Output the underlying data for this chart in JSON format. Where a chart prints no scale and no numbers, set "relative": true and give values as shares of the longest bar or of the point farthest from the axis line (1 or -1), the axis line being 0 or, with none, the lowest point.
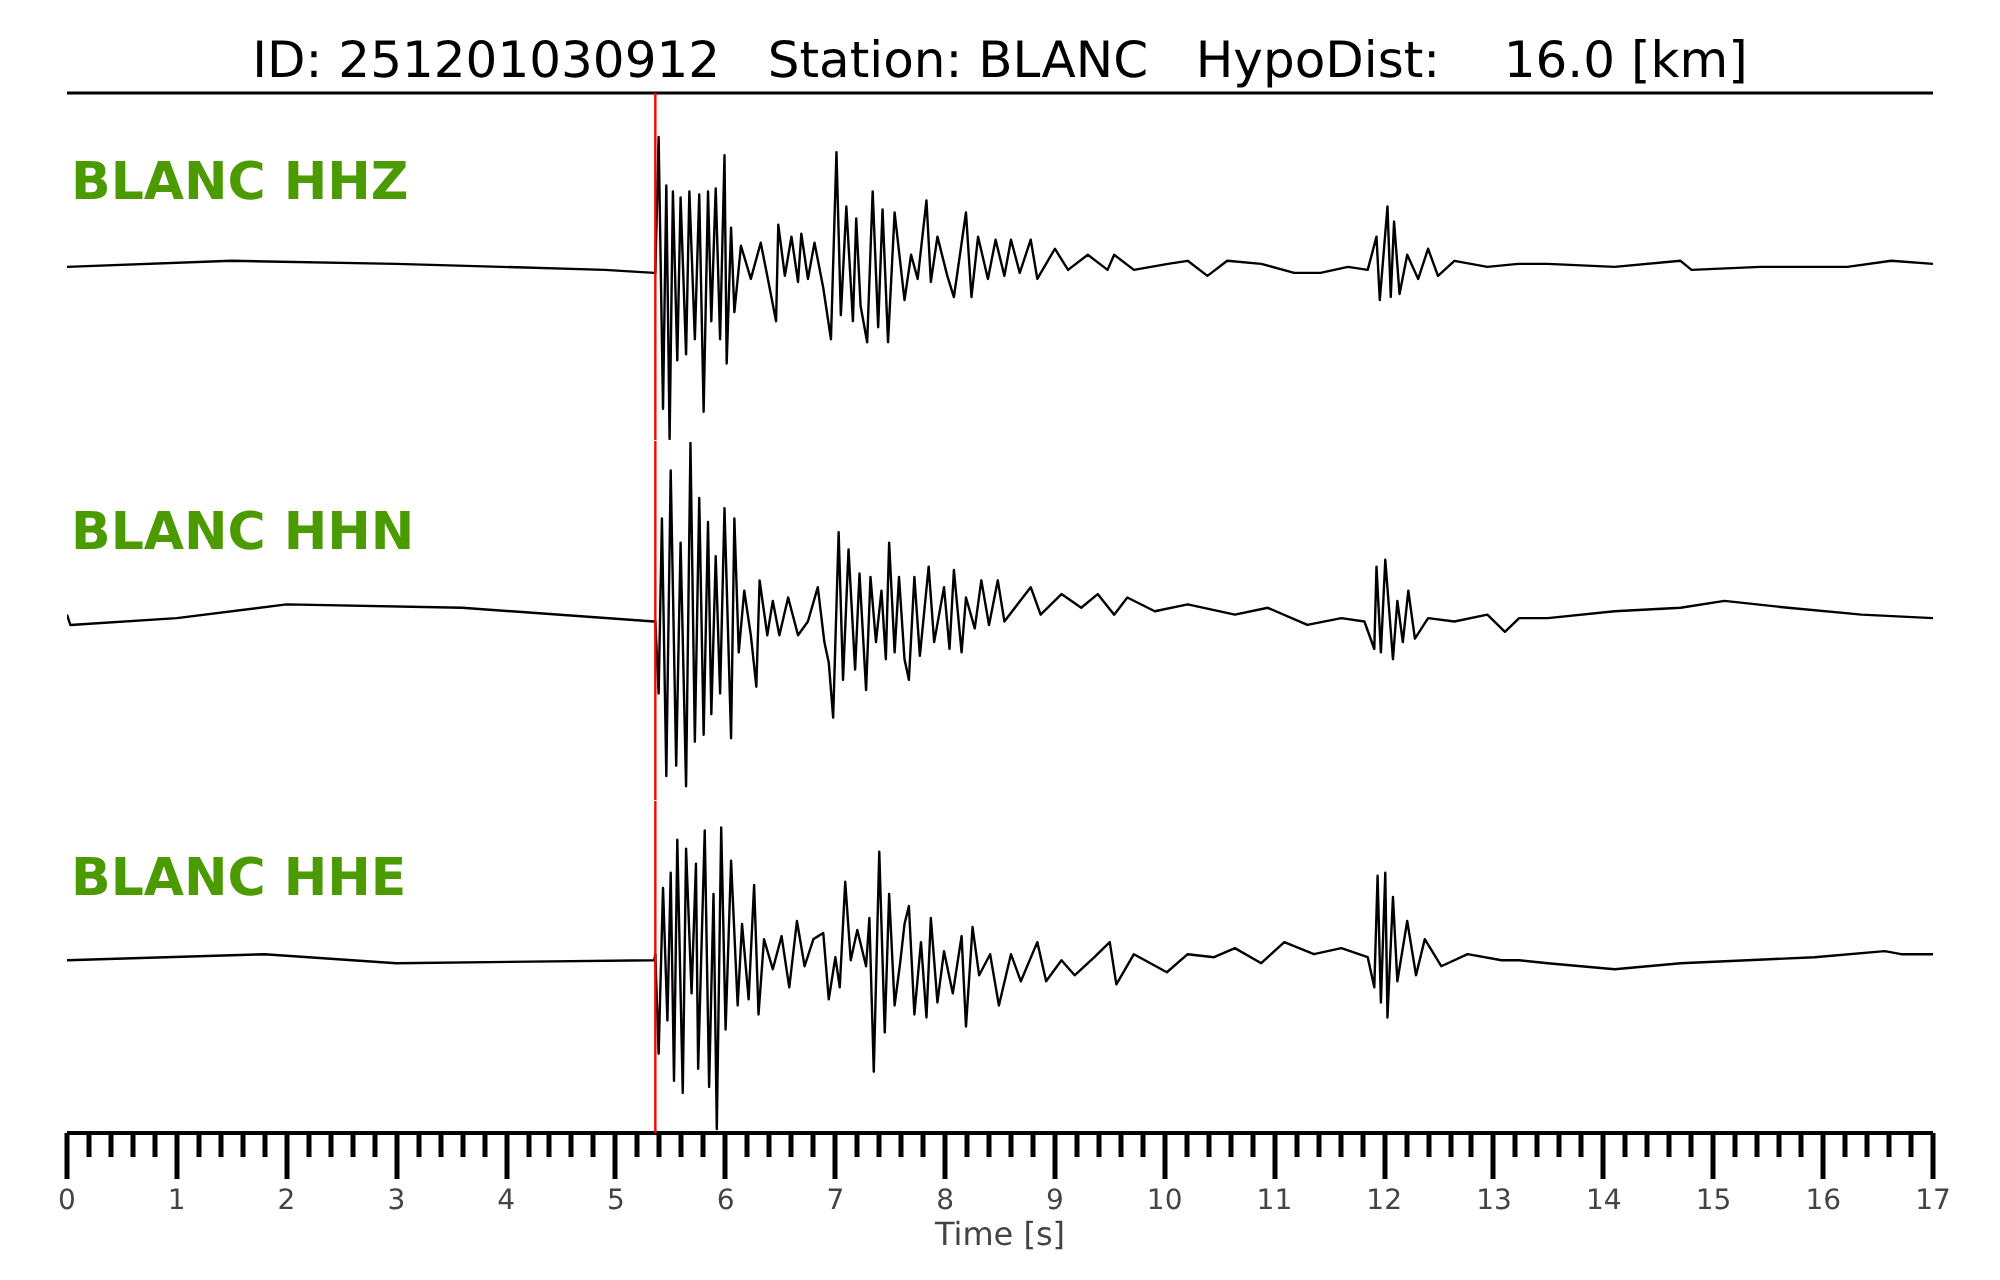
{
  "chart_data": [
    {
      "type": "line",
      "title": "ID: 251201030912   Station: BLANC   HypoDist:    16.0 [km]",
      "relative": true,
      "xlim": [
        0,
        17
      ],
      "tick_labels": false,
      "ref_lines": [
        {
          "axis": "x",
          "value": 5.36,
          "color": "#ff0000"
        }
      ],
      "series": [
        {
          "name": "BLANC HHZ",
          "color": "#000000",
          "x": [
            0,
            1.5,
            3,
            4.9,
            5.35,
            5.36,
            5.39,
            5.43,
            5.46,
            5.49,
            5.52,
            5.56,
            5.59,
            5.64,
            5.67,
            5.72,
            5.76,
            5.8,
            5.84,
            5.87,
            5.91,
            5.95,
            5.99,
            6.01,
            6.05,
            6.08,
            6.14,
            6.23,
            6.32,
            6.38,
            6.46,
            6.48,
            6.54,
            6.6,
            6.66,
            6.69,
            6.75,
            6.81,
            6.89,
            6.96,
            7.01,
            7.05,
            7.1,
            7.16,
            7.19,
            7.23,
            7.29,
            7.34,
            7.39,
            7.43,
            7.48,
            7.54,
            7.63,
            7.69,
            7.75,
            7.83,
            7.87,
            7.93,
            8.02,
            8.08,
            8.19,
            8.24,
            8.3,
            8.39,
            8.46,
            8.54,
            8.6,
            8.68,
            8.78,
            8.84,
            9.0,
            9.12,
            9.3,
            9.48,
            9.54,
            9.72,
            10.03,
            10.21,
            10.39,
            10.57,
            10.88,
            11.18,
            11.42,
            11.67,
            11.85,
            11.93,
            11.96,
            12.03,
            12.06,
            12.09,
            12.14,
            12.21,
            12.31,
            12.4,
            12.49,
            12.64,
            12.94,
            13.22,
            13.49,
            14.1,
            14.7,
            14.8,
            15.43,
            16.22,
            16.62,
            17.0
          ],
          "values": [
            0.57,
            0.59,
            0.58,
            0.56,
            0.55,
            0.55,
            1.0,
            0.1,
            0.84,
            0.0,
            0.82,
            0.26,
            0.8,
            0.28,
            0.82,
            0.33,
            0.81,
            0.09,
            0.82,
            0.39,
            0.83,
            0.33,
            0.94,
            0.25,
            0.7,
            0.42,
            0.64,
            0.53,
            0.65,
            0.54,
            0.39,
            0.71,
            0.54,
            0.67,
            0.52,
            0.68,
            0.53,
            0.65,
            0.5,
            0.33,
            0.95,
            0.41,
            0.77,
            0.39,
            0.73,
            0.44,
            0.32,
            0.82,
            0.37,
            0.76,
            0.32,
            0.75,
            0.46,
            0.61,
            0.53,
            0.79,
            0.52,
            0.67,
            0.54,
            0.47,
            0.75,
            0.47,
            0.67,
            0.53,
            0.66,
            0.54,
            0.66,
            0.55,
            0.66,
            0.53,
            0.63,
            0.56,
            0.61,
            0.56,
            0.61,
            0.56,
            0.58,
            0.59,
            0.54,
            0.59,
            0.58,
            0.55,
            0.55,
            0.57,
            0.56,
            0.67,
            0.46,
            0.77,
            0.47,
            0.72,
            0.48,
            0.61,
            0.53,
            0.63,
            0.54,
            0.59,
            0.57,
            0.58,
            0.58,
            0.57,
            0.59,
            0.56,
            0.57,
            0.57,
            0.59,
            0.58
          ]
        }
      ]
    },
    {
      "type": "line",
      "relative": true,
      "xlim": [
        0,
        17
      ],
      "tick_labels": false,
      "ref_lines": [
        {
          "axis": "x",
          "value": 5.36,
          "color": "#ff0000"
        }
      ],
      "series": [
        {
          "name": "BLANC HHN",
          "color": "#000000",
          "x": [
            0,
            0.03,
            1.0,
            2.0,
            3.6,
            5.35,
            5.36,
            5.39,
            5.42,
            5.46,
            5.5,
            5.55,
            5.59,
            5.64,
            5.68,
            5.72,
            5.76,
            5.8,
            5.84,
            5.87,
            5.91,
            5.95,
            5.99,
            6.05,
            6.08,
            6.12,
            6.17,
            6.23,
            6.28,
            6.31,
            6.38,
            6.43,
            6.49,
            6.57,
            6.66,
            6.75,
            6.84,
            6.9,
            6.94,
            6.98,
            7.03,
            7.07,
            7.12,
            7.18,
            7.22,
            7.28,
            7.32,
            7.37,
            7.42,
            7.46,
            7.49,
            7.54,
            7.58,
            7.63,
            7.67,
            7.72,
            7.77,
            7.85,
            7.9,
            7.99,
            8.04,
            8.08,
            8.15,
            8.19,
            8.27,
            8.33,
            8.4,
            8.48,
            8.54,
            8.66,
            8.78,
            8.87,
            9.06,
            9.24,
            9.39,
            9.54,
            9.66,
            9.91,
            10.21,
            10.64,
            10.94,
            11.3,
            11.61,
            11.82,
            11.91,
            11.93,
            11.97,
            12.01,
            12.08,
            12.12,
            12.17,
            12.22,
            12.28,
            12.4,
            12.64,
            12.94,
            13.1,
            13.23,
            13.49,
            14.1,
            14.7,
            15.1,
            15.68,
            16.35,
            17.0
          ],
          "values": [
            0.5,
            0.47,
            0.49,
            0.53,
            0.52,
            0.48,
            0.48,
            0.27,
            0.78,
            0.03,
            0.92,
            0.06,
            0.71,
            0.0,
            1.0,
            0.13,
            0.84,
            0.15,
            0.77,
            0.21,
            0.67,
            0.27,
            0.81,
            0.14,
            0.78,
            0.39,
            0.57,
            0.44,
            0.29,
            0.6,
            0.44,
            0.54,
            0.44,
            0.55,
            0.44,
            0.48,
            0.58,
            0.42,
            0.36,
            0.2,
            0.74,
            0.31,
            0.69,
            0.34,
            0.62,
            0.28,
            0.61,
            0.42,
            0.57,
            0.37,
            0.71,
            0.39,
            0.61,
            0.37,
            0.31,
            0.61,
            0.38,
            0.64,
            0.42,
            0.58,
            0.4,
            0.63,
            0.39,
            0.55,
            0.46,
            0.6,
            0.47,
            0.6,
            0.48,
            0.53,
            0.58,
            0.5,
            0.56,
            0.52,
            0.56,
            0.5,
            0.55,
            0.51,
            0.53,
            0.5,
            0.52,
            0.47,
            0.49,
            0.48,
            0.4,
            0.64,
            0.39,
            0.66,
            0.37,
            0.54,
            0.42,
            0.57,
            0.43,
            0.49,
            0.48,
            0.5,
            0.45,
            0.49,
            0.49,
            0.51,
            0.52,
            0.54,
            0.52,
            0.5,
            0.49
          ]
        }
      ]
    },
    {
      "type": "line",
      "relative": true,
      "xlabel": "Time [s]",
      "xlim": [
        0,
        17
      ],
      "tick_labels": "x",
      "xticks": [
        0,
        {
          "value": 0.2,
          "label": null
        },
        {
          "value": 0.4,
          "label": null
        },
        {
          "value": 0.6,
          "label": null
        },
        {
          "value": 0.8,
          "label": null
        },
        1,
        {
          "value": 1.2,
          "label": null
        },
        {
          "value": 1.4,
          "label": null
        },
        {
          "value": 1.6,
          "label": null
        },
        {
          "value": 1.8,
          "label": null
        },
        2,
        {
          "value": 2.2,
          "label": null
        },
        {
          "value": 2.4,
          "label": null
        },
        {
          "value": 2.6,
          "label": null
        },
        {
          "value": 2.8,
          "label": null
        },
        3,
        {
          "value": 3.2,
          "label": null
        },
        {
          "value": 3.4,
          "label": null
        },
        {
          "value": 3.6,
          "label": null
        },
        {
          "value": 3.8,
          "label": null
        },
        4,
        {
          "value": 4.2,
          "label": null
        },
        {
          "value": 4.4,
          "label": null
        },
        {
          "value": 4.6,
          "label": null
        },
        {
          "value": 4.8,
          "label": null
        },
        5,
        {
          "value": 5.2,
          "label": null
        },
        {
          "value": 5.4,
          "label": null
        },
        {
          "value": 5.6,
          "label": null
        },
        {
          "value": 5.8,
          "label": null
        },
        6,
        {
          "value": 6.2,
          "label": null
        },
        {
          "value": 6.4,
          "label": null
        },
        {
          "value": 6.6,
          "label": null
        },
        {
          "value": 6.8,
          "label": null
        },
        7,
        {
          "value": 7.2,
          "label": null
        },
        {
          "value": 7.4,
          "label": null
        },
        {
          "value": 7.6,
          "label": null
        },
        {
          "value": 7.8,
          "label": null
        },
        8,
        {
          "value": 8.2,
          "label": null
        },
        {
          "value": 8.4,
          "label": null
        },
        {
          "value": 8.6,
          "label": null
        },
        {
          "value": 8.8,
          "label": null
        },
        9,
        {
          "value": 9.2,
          "label": null
        },
        {
          "value": 9.4,
          "label": null
        },
        {
          "value": 9.6,
          "label": null
        },
        {
          "value": 9.8,
          "label": null
        },
        10,
        {
          "value": 10.2,
          "label": null
        },
        {
          "value": 10.4,
          "label": null
        },
        {
          "value": 10.6,
          "label": null
        },
        {
          "value": 10.8,
          "label": null
        },
        11,
        {
          "value": 11.2,
          "label": null
        },
        {
          "value": 11.4,
          "label": null
        },
        {
          "value": 11.6,
          "label": null
        },
        {
          "value": 11.8,
          "label": null
        },
        12,
        {
          "value": 12.2,
          "label": null
        },
        {
          "value": 12.4,
          "label": null
        },
        {
          "value": 12.6,
          "label": null
        },
        {
          "value": 12.8,
          "label": null
        },
        13,
        {
          "value": 13.2,
          "label": null
        },
        {
          "value": 13.4,
          "label": null
        },
        {
          "value": 13.6,
          "label": null
        },
        {
          "value": 13.8,
          "label": null
        },
        14,
        {
          "value": 14.2,
          "label": null
        },
        {
          "value": 14.4,
          "label": null
        },
        {
          "value": 14.6,
          "label": null
        },
        {
          "value": 14.8,
          "label": null
        },
        15,
        {
          "value": 15.2,
          "label": null
        },
        {
          "value": 15.4,
          "label": null
        },
        {
          "value": 15.6,
          "label": null
        },
        {
          "value": 15.8,
          "label": null
        },
        16,
        {
          "value": 16.2,
          "label": null
        },
        {
          "value": 16.4,
          "label": null
        },
        {
          "value": 16.6,
          "label": null
        },
        {
          "value": 16.8,
          "label": null
        },
        17
      ],
      "ref_lines": [
        {
          "axis": "x",
          "value": 5.36,
          "color": "#ff0000"
        }
      ],
      "series": [
        {
          "name": "BLANC HHE",
          "color": "#000000",
          "x": [
            0,
            1.8,
            3.0,
            5.35,
            5.36,
            5.39,
            5.43,
            5.47,
            5.5,
            5.53,
            5.56,
            5.61,
            5.64,
            5.69,
            5.73,
            5.75,
            5.81,
            5.85,
            5.89,
            5.92,
            5.96,
            6.0,
            6.05,
            6.11,
            6.15,
            6.21,
            6.26,
            6.3,
            6.35,
            6.43,
            6.51,
            6.58,
            6.65,
            6.72,
            6.8,
            6.89,
            6.94,
            7.0,
            7.04,
            7.09,
            7.14,
            7.2,
            7.28,
            7.31,
            7.35,
            7.4,
            7.45,
            7.49,
            7.54,
            7.59,
            7.63,
            7.67,
            7.72,
            7.78,
            7.83,
            7.87,
            7.93,
            7.99,
            8.07,
            8.15,
            8.19,
            8.25,
            8.31,
            8.41,
            8.49,
            8.6,
            8.69,
            8.84,
            8.92,
            9.06,
            9.18,
            9.36,
            9.5,
            9.56,
            9.72,
            10.02,
            10.21,
            10.45,
            10.64,
            10.88,
            11.09,
            11.36,
            11.61,
            11.85,
            11.91,
            11.94,
            11.97,
            12.01,
            12.03,
            12.08,
            12.12,
            12.21,
            12.29,
            12.37,
            12.52,
            12.76,
            13.07,
            13.23,
            13.49,
            14.1,
            14.7,
            15.31,
            15.92,
            16.56,
            16.71,
            17.0
          ],
          "values": [
            0.56,
            0.58,
            0.55,
            0.56,
            0.58,
            0.25,
            0.8,
            0.36,
            0.85,
            0.16,
            0.96,
            0.12,
            0.93,
            0.45,
            0.88,
            0.2,
            0.99,
            0.14,
            0.78,
            0.0,
            1.0,
            0.33,
            0.89,
            0.41,
            0.68,
            0.43,
            0.81,
            0.38,
            0.63,
            0.53,
            0.64,
            0.47,
            0.69,
            0.54,
            0.63,
            0.65,
            0.43,
            0.57,
            0.47,
            0.82,
            0.56,
            0.66,
            0.54,
            0.7,
            0.19,
            0.92,
            0.32,
            0.78,
            0.41,
            0.55,
            0.68,
            0.74,
            0.38,
            0.62,
            0.37,
            0.7,
            0.42,
            0.59,
            0.45,
            0.64,
            0.34,
            0.67,
            0.51,
            0.58,
            0.41,
            0.58,
            0.49,
            0.62,
            0.49,
            0.56,
            0.51,
            0.57,
            0.62,
            0.48,
            0.58,
            0.52,
            0.58,
            0.57,
            0.6,
            0.55,
            0.62,
            0.58,
            0.6,
            0.57,
            0.47,
            0.84,
            0.42,
            0.85,
            0.37,
            0.77,
            0.49,
            0.69,
            0.51,
            0.63,
            0.54,
            0.58,
            0.56,
            0.56,
            0.55,
            0.53,
            0.55,
            0.56,
            0.57,
            0.59,
            0.58,
            0.58
          ]
        }
      ]
    }
  ]
}
